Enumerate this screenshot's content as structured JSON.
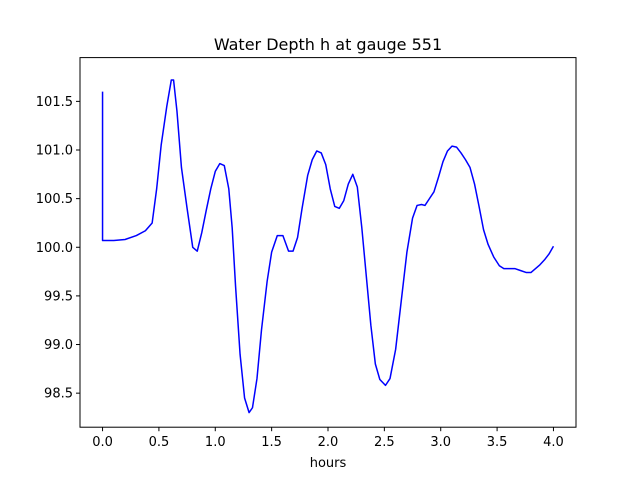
{
  "chart_data": {
    "type": "line",
    "title": "Water Depth h at gauge 551",
    "xlabel": "hours",
    "ylabel": "",
    "xlim": [
      -0.2,
      4.2
    ],
    "ylim": [
      98.15,
      101.95
    ],
    "xticks": [
      "0.0",
      "0.5",
      "1.0",
      "1.5",
      "2.0",
      "2.5",
      "3.0",
      "3.5",
      "4.0"
    ],
    "yticks": [
      "98.5",
      "99.0",
      "99.5",
      "100.0",
      "100.5",
      "101.0",
      "101.5"
    ],
    "grid": false,
    "series": [
      {
        "name": "",
        "color": "#0000ff",
        "x": [
          0.0,
          0.0,
          0.0,
          0.1,
          0.2,
          0.3,
          0.38,
          0.44,
          0.48,
          0.52,
          0.57,
          0.61,
          0.63,
          0.66,
          0.7,
          0.75,
          0.8,
          0.84,
          0.88,
          0.92,
          0.96,
          1.0,
          1.04,
          1.08,
          1.12,
          1.15,
          1.18,
          1.22,
          1.26,
          1.3,
          1.33,
          1.37,
          1.41,
          1.46,
          1.5,
          1.55,
          1.6,
          1.65,
          1.69,
          1.73,
          1.77,
          1.82,
          1.86,
          1.9,
          1.94,
          1.98,
          2.02,
          2.06,
          2.1,
          2.14,
          2.18,
          2.22,
          2.26,
          2.3,
          2.34,
          2.38,
          2.42,
          2.46,
          2.51,
          2.55,
          2.6,
          2.65,
          2.7,
          2.75,
          2.79,
          2.83,
          2.86,
          2.9,
          2.94,
          2.98,
          3.02,
          3.06,
          3.1,
          3.14,
          3.18,
          3.22,
          3.26,
          3.3,
          3.34,
          3.38,
          3.42,
          3.47,
          3.52,
          3.56,
          3.6,
          3.66,
          3.71,
          3.76,
          3.8,
          3.84,
          3.88,
          3.92,
          3.96,
          4.0
        ],
        "y": [
          101.6,
          100.07,
          100.07,
          100.07,
          100.08,
          100.12,
          100.17,
          100.25,
          100.6,
          101.05,
          101.45,
          101.72,
          101.72,
          101.4,
          100.82,
          100.4,
          100.0,
          99.96,
          100.15,
          100.38,
          100.6,
          100.78,
          100.86,
          100.84,
          100.6,
          100.2,
          99.6,
          98.9,
          98.45,
          98.3,
          98.35,
          98.65,
          99.15,
          99.65,
          99.95,
          100.12,
          100.12,
          99.96,
          99.96,
          100.1,
          100.4,
          100.74,
          100.9,
          100.99,
          100.97,
          100.85,
          100.6,
          100.42,
          100.4,
          100.48,
          100.65,
          100.75,
          100.62,
          100.2,
          99.7,
          99.2,
          98.8,
          98.64,
          98.58,
          98.65,
          98.95,
          99.45,
          99.95,
          100.3,
          100.43,
          100.44,
          100.43,
          100.5,
          100.57,
          100.72,
          100.88,
          100.99,
          101.04,
          101.03,
          100.97,
          100.9,
          100.82,
          100.65,
          100.42,
          100.18,
          100.03,
          99.9,
          99.81,
          99.78,
          99.78,
          99.78,
          99.76,
          99.74,
          99.74,
          99.78,
          99.82,
          99.87,
          99.93,
          100.01
        ]
      }
    ]
  }
}
